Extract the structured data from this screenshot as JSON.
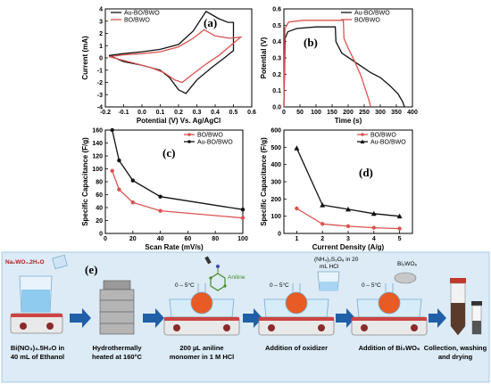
{
  "chart_data": [
    {
      "type": "line",
      "panel": "(a)",
      "xlabel": "Potential (V) Vs. Ag/AgCl",
      "ylabel": "Current (mA)",
      "xlim": [
        -0.2,
        0.6
      ],
      "ylim": [
        -4,
        4
      ],
      "xticks": [
        "-0.2",
        "-0.1",
        "0.0",
        "0.1",
        "0.2",
        "0.3",
        "0.4",
        "0.5",
        "0.6"
      ],
      "yticks": [
        "-4",
        "-3",
        "-2",
        "-1",
        "0",
        "1",
        "2",
        "3",
        "4"
      ],
      "legend_position": "top-left",
      "series": [
        {
          "name": "Au-BO/BWO",
          "color": "#111111",
          "points": [
            [
              -0.18,
              0.2
            ],
            [
              -0.1,
              0.35
            ],
            [
              0.0,
              0.5
            ],
            [
              0.1,
              0.7
            ],
            [
              0.2,
              1.1
            ],
            [
              0.28,
              2.2
            ],
            [
              0.35,
              3.8
            ],
            [
              0.42,
              3.2
            ],
            [
              0.47,
              2.9
            ],
            [
              0.5,
              2.9
            ],
            [
              0.5,
              0.6
            ],
            [
              0.45,
              0.0
            ],
            [
              0.38,
              -0.8
            ],
            [
              0.3,
              -1.8
            ],
            [
              0.24,
              -2.9
            ],
            [
              0.2,
              -2.6
            ],
            [
              0.15,
              -1.6
            ],
            [
              0.1,
              -1.0
            ],
            [
              0.0,
              -0.6
            ],
            [
              -0.1,
              -0.3
            ],
            [
              -0.18,
              0.2
            ]
          ]
        },
        {
          "name": "BO/BWO",
          "color": "#d9534f",
          "points": [
            [
              -0.18,
              0.1
            ],
            [
              -0.1,
              0.25
            ],
            [
              0.0,
              0.35
            ],
            [
              0.1,
              0.5
            ],
            [
              0.2,
              0.9
            ],
            [
              0.28,
              1.6
            ],
            [
              0.34,
              2.3
            ],
            [
              0.4,
              1.8
            ],
            [
              0.48,
              1.6
            ],
            [
              0.54,
              1.7
            ],
            [
              0.5,
              1.2
            ],
            [
              0.42,
              0.2
            ],
            [
              0.35,
              -0.5
            ],
            [
              0.28,
              -1.3
            ],
            [
              0.22,
              -2.0
            ],
            [
              0.18,
              -1.8
            ],
            [
              0.12,
              -1.2
            ],
            [
              0.05,
              -0.8
            ],
            [
              -0.05,
              -0.4
            ],
            [
              -0.18,
              0.1
            ]
          ]
        }
      ]
    },
    {
      "type": "line",
      "panel": "(b)",
      "xlabel": "Time (s)",
      "ylabel": "Potential (V)",
      "xlim": [
        0,
        400
      ],
      "ylim": [
        0,
        0.6
      ],
      "xticks": [
        "0",
        "50",
        "100",
        "150",
        "200",
        "250",
        "300",
        "350",
        "400"
      ],
      "yticks": [
        "0.0",
        "0.1",
        "0.2",
        "0.3",
        "0.4",
        "0.5",
        "0.6"
      ],
      "legend_position": "top-right",
      "series": [
        {
          "name": "Au-BO/BWO",
          "color": "#111111",
          "points": [
            [
              0,
              0.0
            ],
            [
              4,
              0.42
            ],
            [
              12,
              0.46
            ],
            [
              40,
              0.48
            ],
            [
              100,
              0.49
            ],
            [
              160,
              0.49
            ],
            [
              162,
              0.4
            ],
            [
              180,
              0.33
            ],
            [
              210,
              0.29
            ],
            [
              240,
              0.25
            ],
            [
              270,
              0.21
            ],
            [
              300,
              0.18
            ],
            [
              330,
              0.13
            ],
            [
              355,
              0.08
            ],
            [
              370,
              0.03
            ],
            [
              375,
              0.0
            ]
          ]
        },
        {
          "name": "BO/BWO",
          "color": "#d9534f",
          "points": [
            [
              0,
              0.0
            ],
            [
              3,
              0.48
            ],
            [
              15,
              0.52
            ],
            [
              60,
              0.53
            ],
            [
              120,
              0.53
            ],
            [
              185,
              0.53
            ],
            [
              187,
              0.42
            ],
            [
              200,
              0.36
            ],
            [
              220,
              0.28
            ],
            [
              240,
              0.19
            ],
            [
              255,
              0.1
            ],
            [
              265,
              0.04
            ],
            [
              270,
              0.0
            ]
          ]
        }
      ]
    },
    {
      "type": "line",
      "panel": "(c)",
      "xlabel": "Scan Rate (mV/s)",
      "ylabel": "Specific Capacitance (F/g)",
      "xlim": [
        0,
        100
      ],
      "ylim": [
        0,
        160
      ],
      "xticks": [
        "0",
        "20",
        "40",
        "60",
        "80",
        "100"
      ],
      "yticks": [
        "0",
        "20",
        "40",
        "60",
        "80",
        "100",
        "120",
        "140",
        "160"
      ],
      "legend_position": "top-right",
      "series": [
        {
          "name": "BO/BWO",
          "color": "#d9534f",
          "x": [
            5,
            10,
            20,
            40,
            100
          ],
          "y": [
            97,
            68,
            48,
            35,
            24
          ]
        },
        {
          "name": "Au-BO/BWO",
          "color": "#111111",
          "x": [
            5,
            10,
            20,
            40,
            100
          ],
          "y": [
            160,
            113,
            82,
            57,
            37
          ]
        }
      ]
    },
    {
      "type": "line",
      "panel": "(d)",
      "xlabel": "Current Density (A/g)",
      "ylabel": "Specific Capacitance (F/g)",
      "xlim": [
        0.5,
        5.5
      ],
      "ylim": [
        0,
        600
      ],
      "xticks": [
        "1",
        "2",
        "3",
        "4",
        "5"
      ],
      "yticks": [
        "0",
        "100",
        "200",
        "300",
        "400",
        "500",
        "600"
      ],
      "legend_position": "top-right",
      "series": [
        {
          "name": "BO/BWO",
          "color": "#d9534f",
          "x": [
            1,
            2,
            3,
            4,
            5
          ],
          "y": [
            145,
            55,
            42,
            33,
            28
          ]
        },
        {
          "name": "Au-BO/BWO",
          "color": "#111111",
          "x": [
            1,
            2,
            3,
            4,
            5
          ],
          "y": [
            495,
            165,
            140,
            115,
            100
          ]
        }
      ]
    }
  ],
  "scheme": {
    "panel_label": "(e)",
    "reagent_top": "Na₂WO₄.2H₂O",
    "step1": [
      "Bi(NO₃)₃.5H₂O in",
      "40 mL of Ethanol"
    ],
    "step2": [
      "Hydrothermally",
      "heated at 160°C"
    ],
    "step3": [
      "200 µL aniline",
      "monomer in 1 M HCl"
    ],
    "step3_tag": "Aniline",
    "step4": [
      "Addition of oxidizer"
    ],
    "step4_reagent": [
      "(NH₄)₂S₂O₈ in 20",
      "mL HCl"
    ],
    "step5": [
      "Addition of Bi₂WO₆"
    ],
    "step5_reagent": "Bi₂WO₆",
    "step6": [
      "Collection, washing",
      "and drying"
    ],
    "temp_label": "0 – 5°C"
  }
}
